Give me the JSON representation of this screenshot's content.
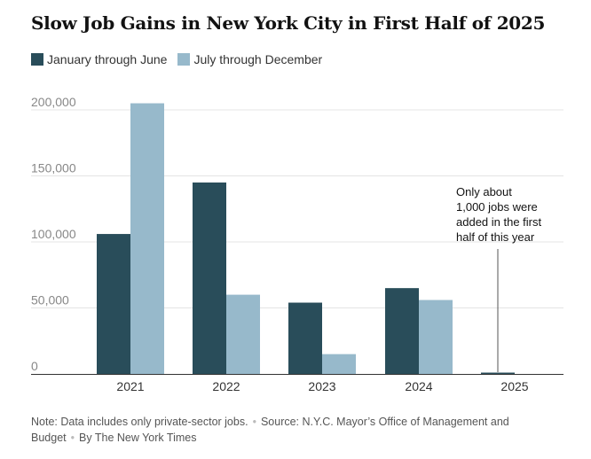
{
  "title": "Slow Job Gains in New York City in First Half of 2025",
  "colors": {
    "first_half": "#294d5a",
    "second_half": "#97b9cb",
    "grid": "#e4e4e4",
    "axis": "#333333"
  },
  "chart_data": {
    "type": "bar",
    "title": "Slow Job Gains in New York City in First Half of 2025",
    "categories": [
      "2021",
      "2022",
      "2023",
      "2024",
      "2025"
    ],
    "series": [
      {
        "name": "January through June",
        "values": [
          106000,
          145000,
          54000,
          65000,
          1000
        ]
      },
      {
        "name": "July through December",
        "values": [
          205000,
          60000,
          15000,
          56000,
          null
        ]
      }
    ],
    "yticks": [
      0,
      50000,
      100000,
      150000,
      200000
    ],
    "ytick_labels": [
      "0",
      "50,000",
      "100,000",
      "150,000",
      "200,000"
    ],
    "ylim": [
      0,
      210000
    ],
    "xlabel": "",
    "ylabel": "",
    "grid": true,
    "legend": "top-left",
    "annotation": {
      "category": "2025",
      "lines": [
        "Only about",
        "1,000 jobs were",
        "added in the first",
        "half of this year"
      ]
    }
  },
  "footer": {
    "note": "Note: Data includes only private-sector jobs.",
    "source": "Source: N.Y.C. Mayor’s Office of Management and Budget",
    "credit": "By The New York Times"
  }
}
